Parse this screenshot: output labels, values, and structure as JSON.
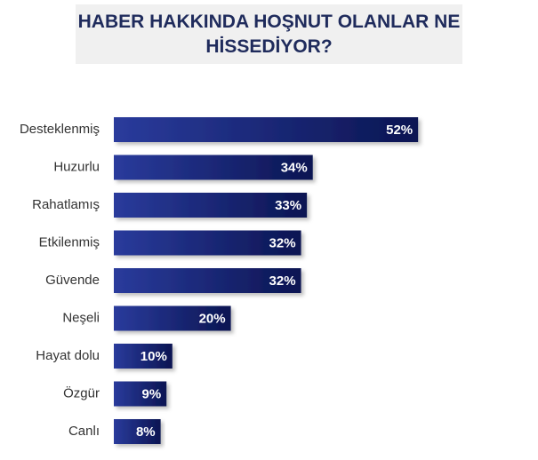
{
  "chart_data": {
    "type": "bar",
    "orientation": "horizontal",
    "title": "HABER HAKKINDA HOŞNUT OLANLAR NE HİSSEDİYOR?",
    "categories": [
      "Desteklenmiş",
      "Huzurlu",
      "Rahatlamış",
      "Etkilenmiş",
      "Güvende",
      "Neşeli",
      "Hayat dolu",
      "Özgür",
      "Canlı"
    ],
    "values": [
      52,
      34,
      33,
      32,
      32,
      20,
      10,
      9,
      8
    ],
    "value_labels": [
      "52%",
      "34%",
      "33%",
      "32%",
      "32%",
      "20%",
      "10%",
      "9%",
      "8%"
    ],
    "color": "#15257a"
  }
}
